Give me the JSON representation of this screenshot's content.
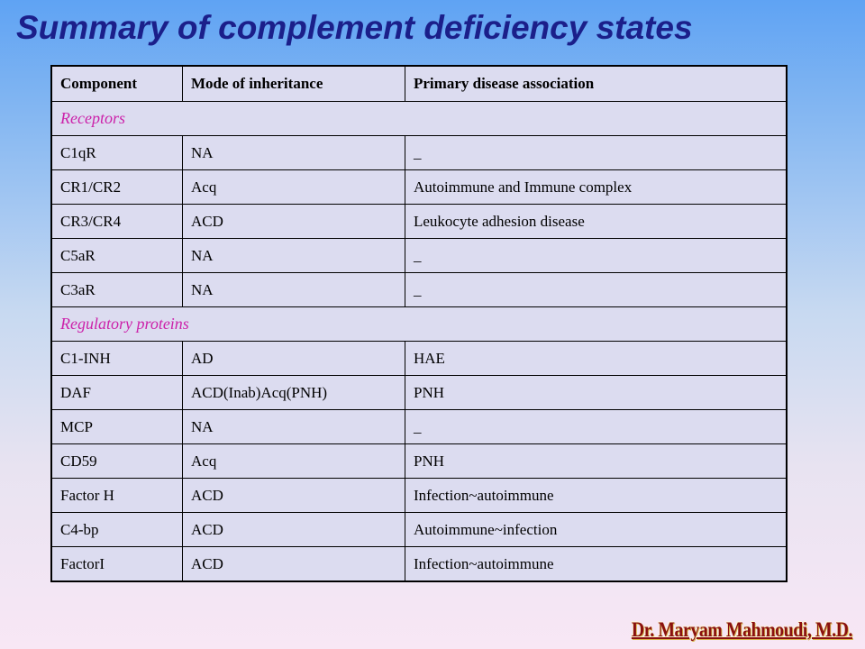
{
  "slide": {
    "title": "Summary of complement deficiency states",
    "author": "Dr. Maryam Mahmoudi, M.D."
  },
  "table": {
    "headers": [
      "Component",
      "Mode of  inheritance",
      "Primary disease association"
    ],
    "sections": [
      {
        "title": "Receptors",
        "rows": [
          [
            "C1qR",
            "NA",
            "_"
          ],
          [
            "CR1/CR2",
            "Acq",
            "Autoimmune and Immune complex"
          ],
          [
            "CR3/CR4",
            "ACD",
            "Leukocyte adhesion disease"
          ],
          [
            "C5aR",
            "NA",
            "_"
          ],
          [
            "C3aR",
            "NA",
            "_"
          ]
        ]
      },
      {
        "title": "Regulatory proteins",
        "rows": [
          [
            "C1-INH",
            "AD",
            "HAE"
          ],
          [
            "DAF",
            "ACD(Inab)Acq(PNH)",
            "PNH"
          ],
          [
            "MCP",
            "NA",
            "_"
          ],
          [
            "CD59",
            "Acq",
            "PNH"
          ],
          [
            "Factor H",
            "ACD",
            "Infection~autoimmune"
          ],
          [
            "C4-bp",
            "ACD",
            "Autoimmune~infection"
          ],
          [
            "FactorI",
            "ACD",
            "Infection~autoimmune"
          ]
        ]
      }
    ]
  },
  "colors": {
    "title": "#1b1f8a",
    "section_heading": "#cc22aa",
    "table_fill": "#dcdcf0",
    "author": "#8a1010"
  }
}
